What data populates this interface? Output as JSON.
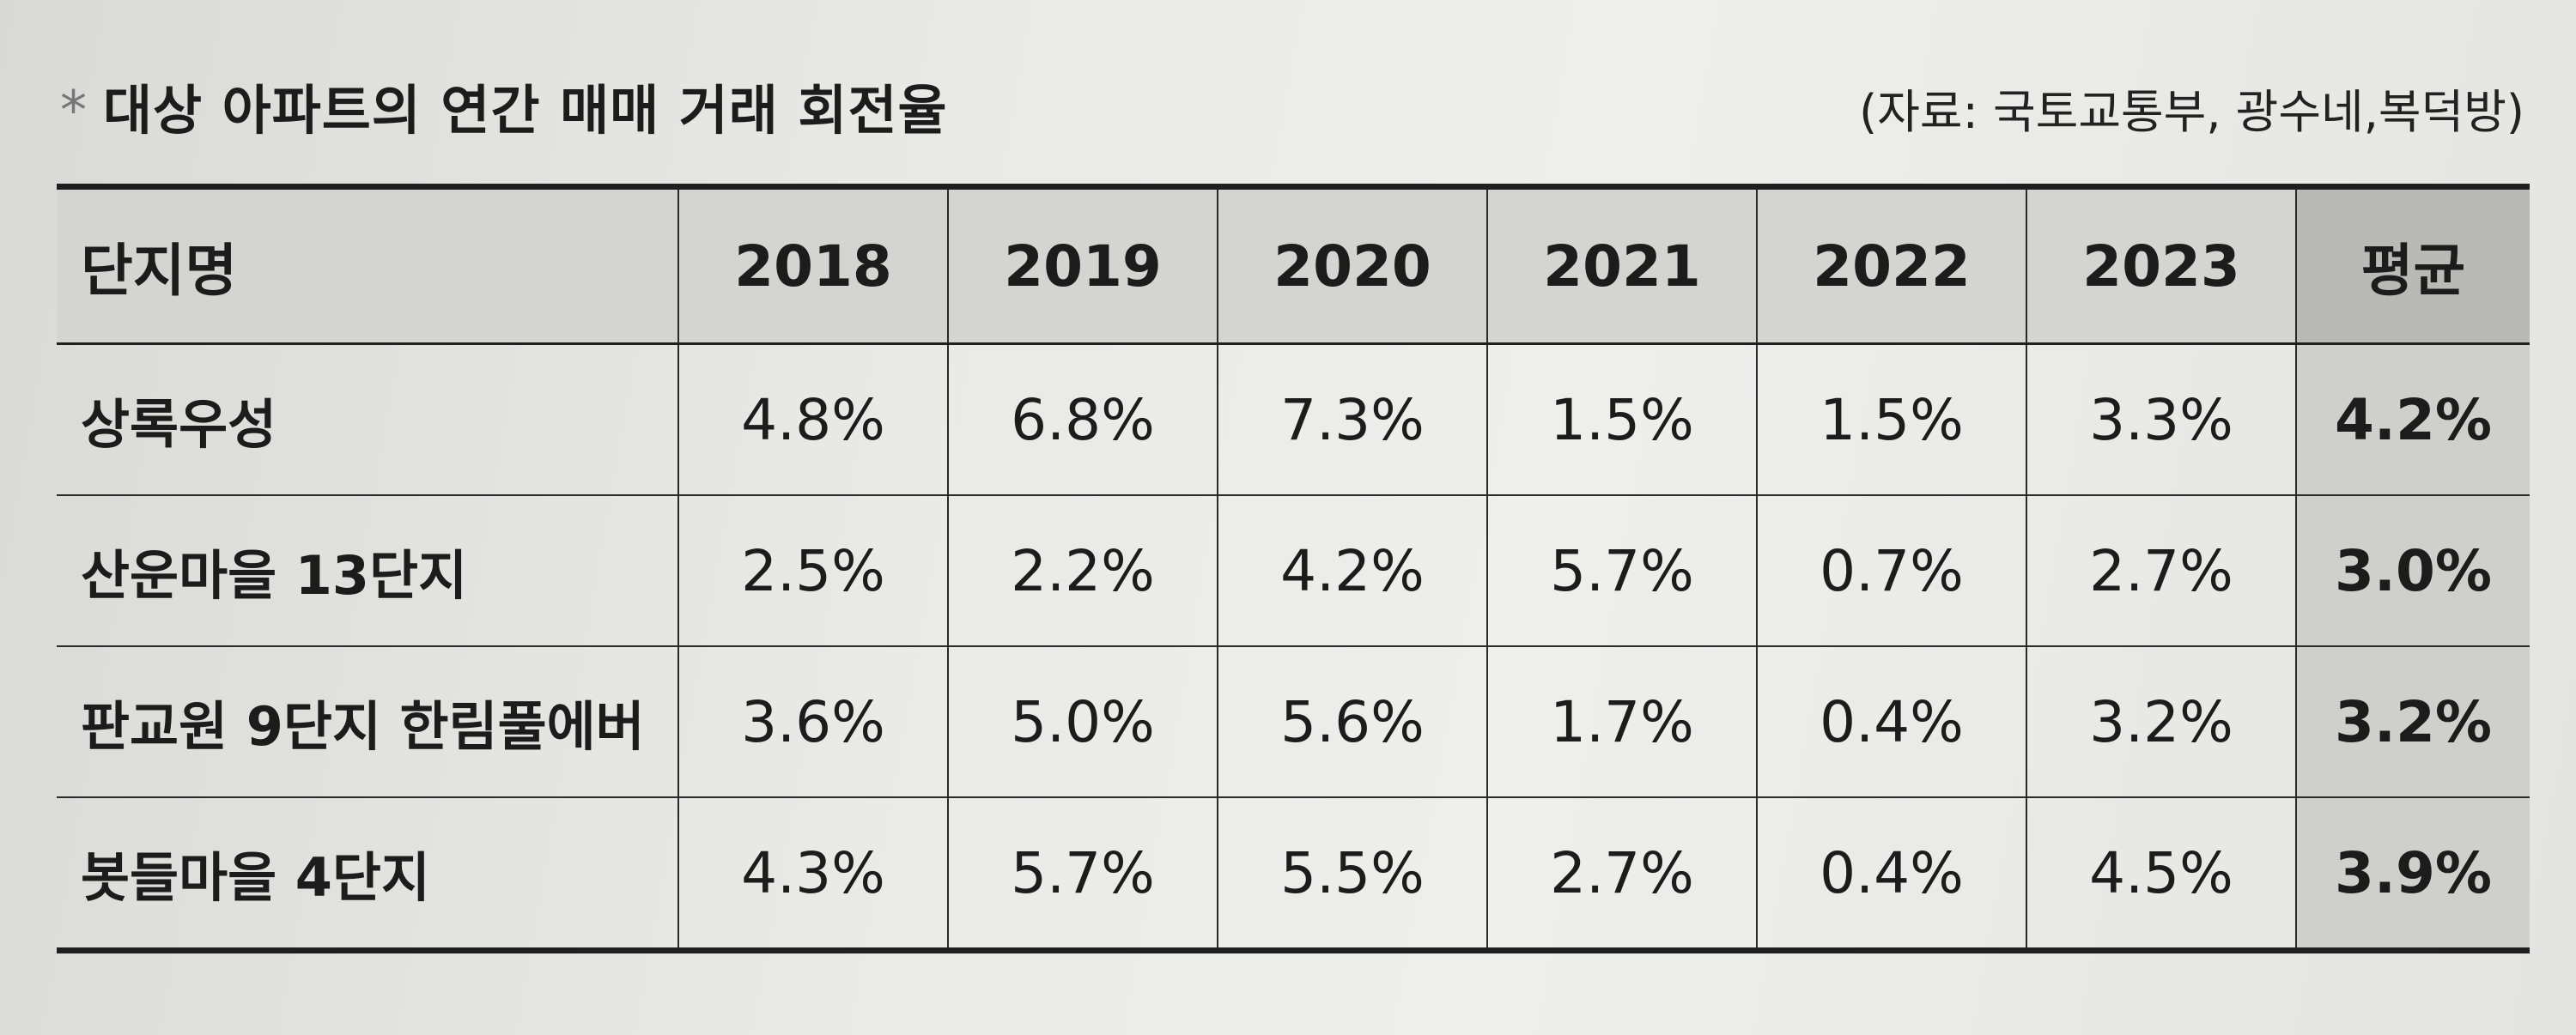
{
  "header": {
    "star": "*",
    "title": "대상 아파트의 연간 매매 거래 회전율",
    "source": "(자료: 국토교통부, 광수네,복덕방)"
  },
  "table": {
    "columns": [
      "단지명",
      "2018",
      "2019",
      "2020",
      "2021",
      "2022",
      "2023",
      "평균"
    ],
    "rows": [
      {
        "name": "상록우성",
        "values": [
          "4.8%",
          "6.8%",
          "7.3%",
          "1.5%",
          "1.5%",
          "3.3%"
        ],
        "avg": "4.2%"
      },
      {
        "name": "산운마을 13단지",
        "values": [
          "2.5%",
          "2.2%",
          "4.2%",
          "5.7%",
          "0.7%",
          "2.7%"
        ],
        "avg": "3.0%"
      },
      {
        "name": "판교원 9단지 한림풀에버",
        "values": [
          "3.6%",
          "5.0%",
          "5.6%",
          "1.7%",
          "0.4%",
          "3.2%"
        ],
        "avg": "3.2%"
      },
      {
        "name": "봇들마을 4단지",
        "values": [
          "4.3%",
          "5.7%",
          "5.5%",
          "2.7%",
          "0.4%",
          "4.5%"
        ],
        "avg": "3.9%"
      }
    ]
  }
}
